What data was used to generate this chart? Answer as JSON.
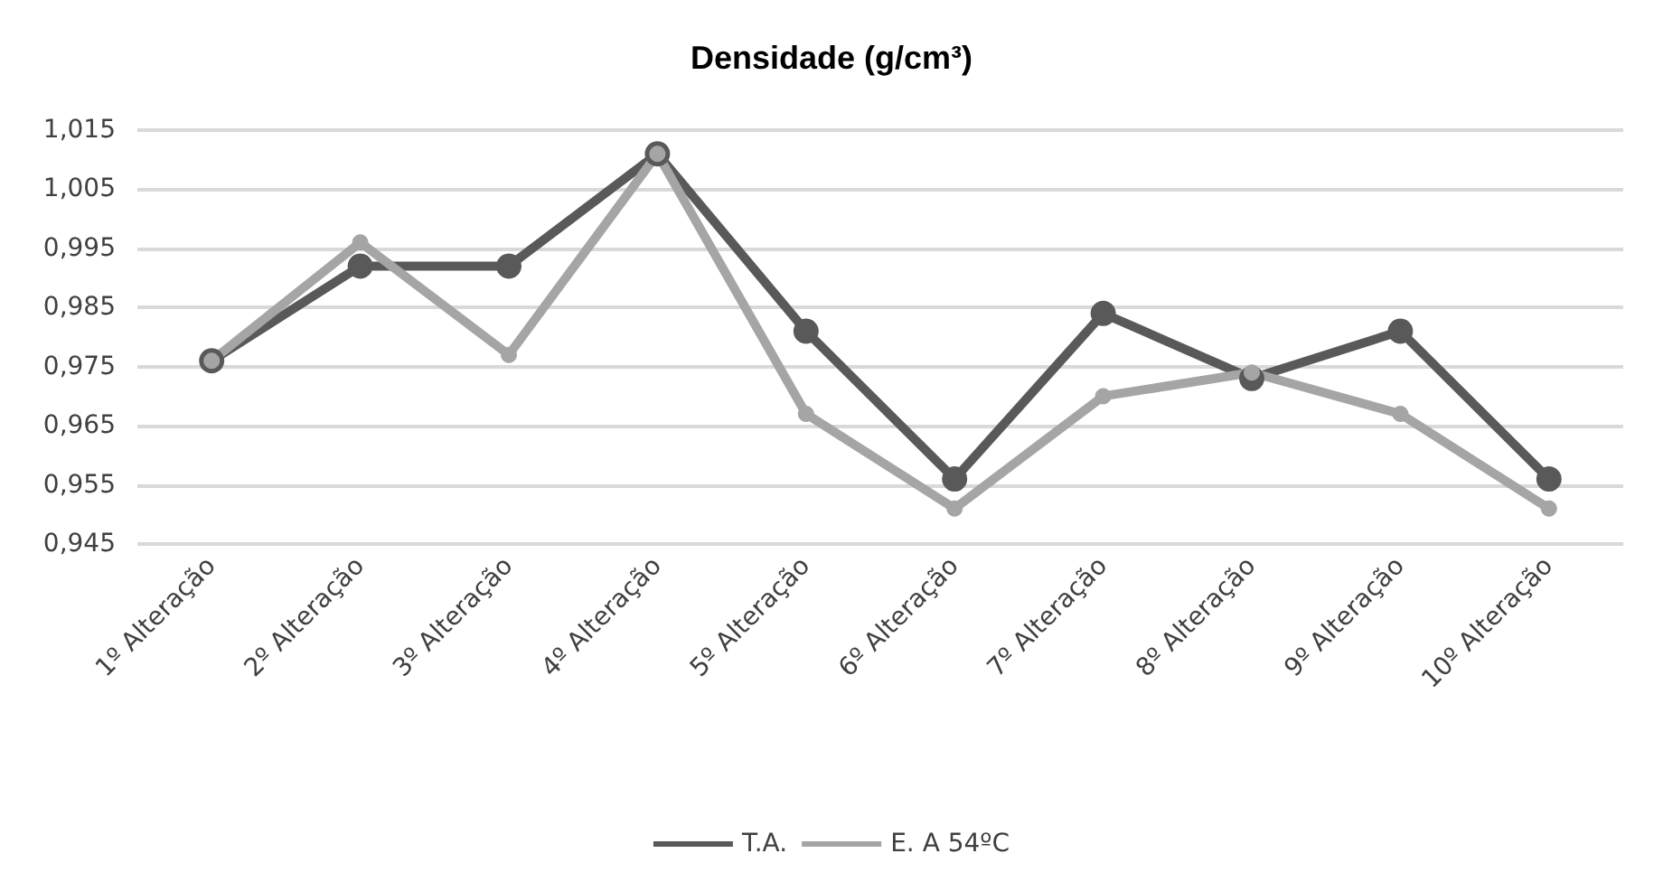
{
  "chart_data": {
    "type": "line",
    "title": "Densidade (g/cm³)",
    "categories": [
      "1º Alteração",
      "2º Alteração",
      "3º Alteração",
      "4º Alteração",
      "5º Alteração",
      "6º Alteração",
      "7º Alteração",
      "8º Alteração",
      "9º Alteração",
      "10º Alteração"
    ],
    "series": [
      {
        "name": "T.A.",
        "color": "#595959",
        "values": [
          0.976,
          0.992,
          0.992,
          1.011,
          0.981,
          0.956,
          0.984,
          0.973,
          0.981,
          0.956
        ]
      },
      {
        "name": "E. A 54ºC",
        "color": "#a5a5a5",
        "values": [
          0.976,
          0.996,
          0.977,
          1.011,
          0.967,
          0.951,
          0.97,
          0.974,
          0.967,
          0.951
        ]
      }
    ],
    "ylim": [
      0.945,
      1.015
    ],
    "yticks": [
      {
        "value": 0.945,
        "label": "0,945"
      },
      {
        "value": 0.955,
        "label": "0,955"
      },
      {
        "value": 0.965,
        "label": "0,965"
      },
      {
        "value": 0.975,
        "label": "0,975"
      },
      {
        "value": 0.985,
        "label": "0,985"
      },
      {
        "value": 0.995,
        "label": "0,995"
      },
      {
        "value": 1.005,
        "label": "1,005"
      },
      {
        "value": 1.015,
        "label": "1,015"
      }
    ],
    "grid": "y",
    "legend": "bottom",
    "marker": "circle",
    "line_style": "solid"
  }
}
